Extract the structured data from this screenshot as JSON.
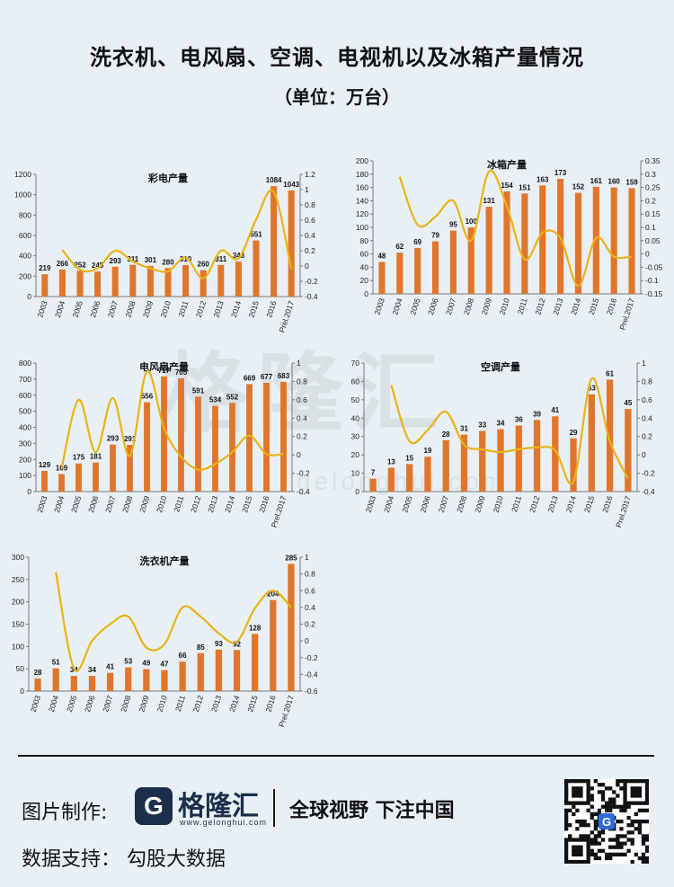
{
  "page": {
    "title": "洗衣机、电风扇、空调、电视机以及冰箱产量情况",
    "subtitle": "（单位：万台）",
    "watermark": "格隆汇",
    "watermark_url": "gelonghui.com"
  },
  "footer": {
    "made_by_label": "图片制作:",
    "brand": "格隆汇",
    "brand_logo_letter": "G",
    "brand_url": "www.gelonghui.com",
    "slogan": "全球视野 下注中国",
    "data_source": "数据支持： 勾股大数据"
  },
  "colors": {
    "bar": "#e0762b",
    "line": "#e9b318",
    "axis": "#777777"
  },
  "chart_data": [
    {
      "type": "bar",
      "title": "彩电产量",
      "categories": [
        "2003",
        "2004",
        "2005",
        "2006",
        "2007",
        "2008",
        "2009",
        "2010",
        "2011",
        "2012",
        "2013",
        "2014",
        "2015",
        "2016",
        "Prel.2017"
      ],
      "values": [
        219,
        266,
        252,
        245,
        293,
        311,
        301,
        280,
        310,
        260,
        311,
        343,
        551,
        1084,
        1043
      ],
      "ylim": [
        0,
        1200
      ],
      "yticks": [
        0,
        200,
        400,
        600,
        800,
        1000,
        1200
      ],
      "y2lim": [
        -0.4,
        1.2
      ],
      "y2ticks": [
        -0.4,
        -0.2,
        0,
        0.2,
        0.4,
        0.6,
        0.8,
        1,
        1.2
      ],
      "line": [
        0.21,
        -0.05,
        -0.03,
        0.2,
        0.06,
        -0.03,
        -0.07,
        0.11,
        -0.16,
        0.2,
        0.1,
        0.61,
        0.97,
        -0.04
      ],
      "line_start": 1
    },
    {
      "type": "bar",
      "title": "冰箱产量",
      "categories": [
        "2003",
        "2004",
        "2005",
        "2006",
        "2007",
        "2008",
        "2009",
        "2010",
        "2011",
        "2012",
        "2013",
        "2014",
        "2015",
        "2016",
        "Prel.2017"
      ],
      "values": [
        48,
        62,
        69,
        79,
        95,
        100,
        131,
        154,
        151,
        163,
        173,
        152,
        161,
        160,
        159
      ],
      "ylim": [
        0,
        200
      ],
      "yticks": [
        0,
        20,
        40,
        60,
        80,
        100,
        120,
        140,
        160,
        180,
        200
      ],
      "y2lim": [
        -0.15,
        0.35
      ],
      "y2ticks": [
        -0.15,
        -0.1,
        -0.05,
        0,
        0.05,
        0.1,
        0.15,
        0.2,
        0.25,
        0.3,
        0.35
      ],
      "line": [
        0.29,
        0.11,
        0.14,
        0.2,
        0.05,
        0.31,
        0.18,
        -0.02,
        0.08,
        0.06,
        -0.12,
        0.06,
        -0.01,
        -0.01
      ],
      "line_start": 1
    },
    {
      "type": "bar",
      "title": "电风扇产量",
      "categories": [
        "2003",
        "2004",
        "2005",
        "2006",
        "2007",
        "2008",
        "2009",
        "2010",
        "2011",
        "2012",
        "2013",
        "2014",
        "2015",
        "2016",
        "Prel.2017"
      ],
      "values": [
        129,
        109,
        175,
        181,
        293,
        291,
        556,
        717,
        705,
        591,
        534,
        552,
        669,
        677,
        683
      ],
      "ylim": [
        0,
        800
      ],
      "yticks": [
        0,
        100,
        200,
        300,
        400,
        500,
        600,
        700,
        800
      ],
      "y2lim": [
        -0.4,
        1
      ],
      "y2ticks": [
        -0.4,
        -0.2,
        0,
        0.2,
        0.4,
        0.6,
        0.8,
        1
      ],
      "line": [
        -0.15,
        0.6,
        0.03,
        0.62,
        -0.01,
        0.91,
        0.29,
        -0.02,
        -0.16,
        -0.1,
        0.03,
        0.21,
        0.01,
        0.01
      ],
      "line_start": 1
    },
    {
      "type": "bar",
      "title": "空调产量",
      "categories": [
        "2003",
        "2004",
        "2005",
        "2006",
        "2007",
        "2008",
        "2009",
        "2010",
        "2011",
        "2012",
        "2013",
        "2014",
        "2015",
        "2016",
        "Prel.2017"
      ],
      "values": [
        7,
        13,
        15,
        19,
        28,
        31,
        33,
        34,
        36,
        39,
        41,
        29,
        53,
        61,
        45
      ],
      "ylim": [
        0,
        70
      ],
      "yticks": [
        0,
        10,
        20,
        30,
        40,
        50,
        60,
        70
      ],
      "y2lim": [
        -0.4,
        1
      ],
      "y2ticks": [
        -0.4,
        -0.2,
        0,
        0.2,
        0.4,
        0.6,
        0.8,
        1
      ],
      "line": [
        0.76,
        0.15,
        0.27,
        0.47,
        0.11,
        0.06,
        0.03,
        0.06,
        0.08,
        0.05,
        -0.29,
        0.83,
        0.15,
        -0.26
      ],
      "line_start": 1
    },
    {
      "type": "bar",
      "title": "洗衣机产量",
      "categories": [
        "2003",
        "2004",
        "2005",
        "2006",
        "2007",
        "2008",
        "2009",
        "2010",
        "2011",
        "2012",
        "2013",
        "2014",
        "2015",
        "2016",
        "Prel.2017"
      ],
      "values": [
        28,
        51,
        34,
        34,
        41,
        53,
        49,
        47,
        66,
        85,
        93,
        92,
        128,
        204,
        285
      ],
      "ylim": [
        0,
        300
      ],
      "yticks": [
        0,
        50,
        100,
        150,
        200,
        250,
        300
      ],
      "y2lim": [
        -0.6,
        1
      ],
      "y2ticks": [
        -0.6,
        -0.4,
        -0.2,
        0,
        0.2,
        0.4,
        0.6,
        0.8,
        1
      ],
      "line": [
        0.82,
        -0.33,
        0.0,
        0.2,
        0.29,
        -0.08,
        -0.04,
        0.4,
        0.29,
        0.09,
        -0.01,
        0.39,
        0.6,
        0.4
      ],
      "line_start": 1
    }
  ]
}
